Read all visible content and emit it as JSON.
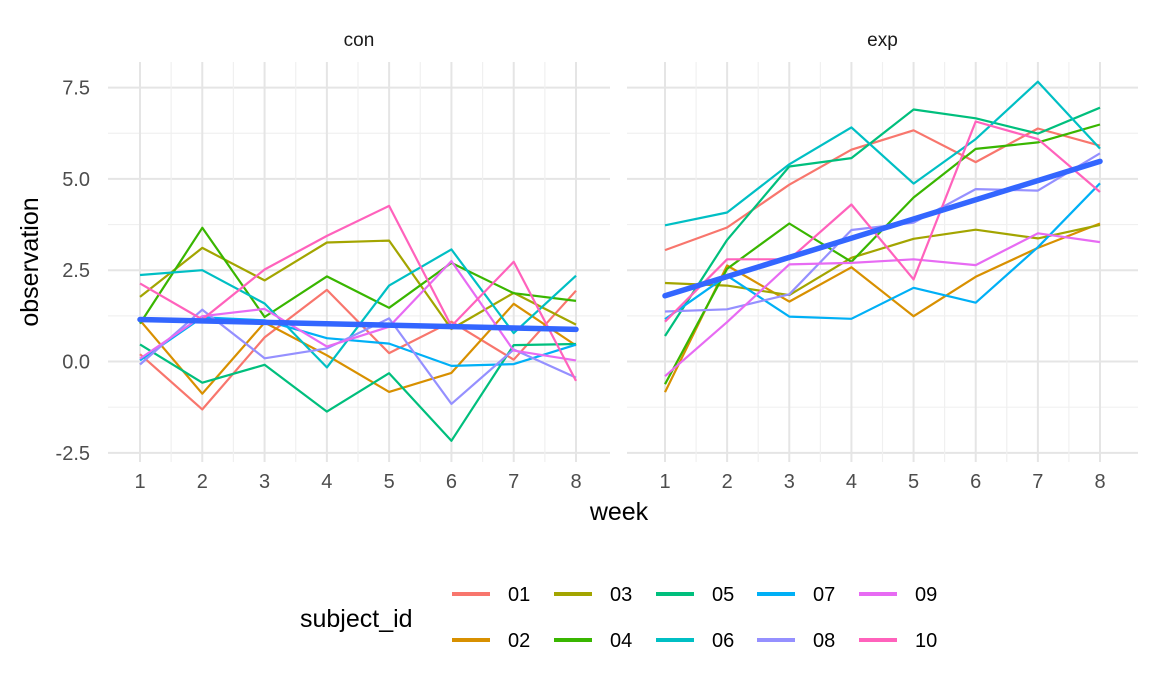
{
  "chart_data": {
    "type": "line",
    "x": [
      1,
      2,
      3,
      4,
      5,
      6,
      7,
      8
    ],
    "xlabel": "week",
    "ylabel": "observation",
    "ylim": [
      -2.75,
      8.2
    ],
    "yticks": [
      -2.5,
      0.0,
      2.5,
      5.0,
      7.5
    ],
    "ytick_labels": [
      "-2.5",
      "0.0",
      "2.5",
      "5.0",
      "7.5"
    ],
    "xticks": [
      1,
      2,
      3,
      4,
      5,
      6,
      7,
      8
    ],
    "xtick_labels": [
      "1",
      "2",
      "3",
      "4",
      "5",
      "6",
      "7",
      "8"
    ],
    "grid": true,
    "legend_title": "subject_id",
    "legend_position": "bottom",
    "trend_color": "#3366FF",
    "panels": [
      {
        "label": "con",
        "trend": [
          1.15,
          0.88
        ],
        "series": [
          {
            "name": "01",
            "color": "#F8766D",
            "values": [
              0.2,
              -1.31,
              0.66,
              1.96,
              0.23,
              1.09,
              0.05,
              1.94
            ]
          },
          {
            "name": "02",
            "color": "#D89000",
            "values": [
              1.13,
              -0.88,
              1.07,
              0.17,
              -0.83,
              -0.31,
              1.58,
              0.44
            ]
          },
          {
            "name": "03",
            "color": "#A3A500",
            "values": [
              1.77,
              3.11,
              2.22,
              3.26,
              3.31,
              0.89,
              1.88,
              1.01
            ]
          },
          {
            "name": "04",
            "color": "#39B600",
            "values": [
              1.04,
              3.66,
              1.22,
              2.33,
              1.47,
              2.7,
              1.87,
              1.66
            ]
          },
          {
            "name": "05",
            "color": "#00BF7D",
            "values": [
              0.47,
              -0.58,
              -0.09,
              -1.37,
              -0.32,
              -2.17,
              0.45,
              0.48
            ]
          },
          {
            "name": "06",
            "color": "#00BFC4",
            "values": [
              2.37,
              2.5,
              1.59,
              -0.16,
              2.08,
              3.07,
              0.78,
              2.35
            ]
          },
          {
            "name": "07",
            "color": "#00B0F6",
            "values": [
              0.03,
              1.21,
              1.13,
              0.64,
              0.49,
              -0.12,
              -0.07,
              0.46
            ]
          },
          {
            "name": "08",
            "color": "#9590FF",
            "values": [
              -0.08,
              1.42,
              0.09,
              0.36,
              1.18,
              -1.16,
              0.33,
              -0.44
            ]
          },
          {
            "name": "09",
            "color": "#E76BF3",
            "values": [
              0.08,
              1.24,
              1.44,
              0.41,
              0.95,
              2.75,
              0.3,
              0.03
            ]
          },
          {
            "name": "10",
            "color": "#FF62BC",
            "values": [
              2.14,
              1.15,
              2.52,
              3.44,
              4.26,
              0.97,
              2.73,
              -0.53
            ]
          }
        ]
      },
      {
        "label": "exp",
        "trend": [
          1.8,
          5.48
        ],
        "series": [
          {
            "name": "01",
            "color": "#F8766D",
            "values": [
              3.05,
              3.67,
              4.84,
              5.8,
              6.33,
              5.46,
              6.38,
              5.91
            ]
          },
          {
            "name": "02",
            "color": "#D89000",
            "values": [
              -0.84,
              2.63,
              1.64,
              2.58,
              1.24,
              2.32,
              3.11,
              3.78
            ]
          },
          {
            "name": "03",
            "color": "#A3A500",
            "values": [
              2.15,
              2.08,
              1.82,
              2.84,
              3.36,
              3.61,
              3.37,
              3.74
            ]
          },
          {
            "name": "04",
            "color": "#39B600",
            "values": [
              -0.62,
              2.54,
              3.78,
              2.73,
              4.49,
              5.82,
              6.0,
              6.49
            ]
          },
          {
            "name": "05",
            "color": "#00BF7D",
            "values": [
              0.7,
              3.33,
              5.34,
              5.57,
              6.9,
              6.66,
              6.24,
              6.95
            ]
          },
          {
            "name": "06",
            "color": "#00BFC4",
            "values": [
              3.73,
              4.08,
              5.4,
              6.41,
              4.87,
              6.09,
              7.66,
              5.83
            ]
          },
          {
            "name": "07",
            "color": "#00B0F6",
            "values": [
              1.16,
              2.35,
              1.23,
              1.17,
              2.02,
              1.61,
              3.13,
              4.88
            ]
          },
          {
            "name": "08",
            "color": "#9590FF",
            "values": [
              1.37,
              1.43,
              1.84,
              3.6,
              3.8,
              4.72,
              4.68,
              5.7
            ]
          },
          {
            "name": "09",
            "color": "#E76BF3",
            "values": [
              -0.4,
              1.08,
              2.66,
              2.7,
              2.8,
              2.64,
              3.51,
              3.27
            ]
          },
          {
            "name": "10",
            "color": "#FF62BC",
            "values": [
              1.09,
              2.8,
              2.8,
              4.3,
              2.25,
              6.57,
              6.09,
              4.64
            ]
          }
        ]
      }
    ]
  }
}
